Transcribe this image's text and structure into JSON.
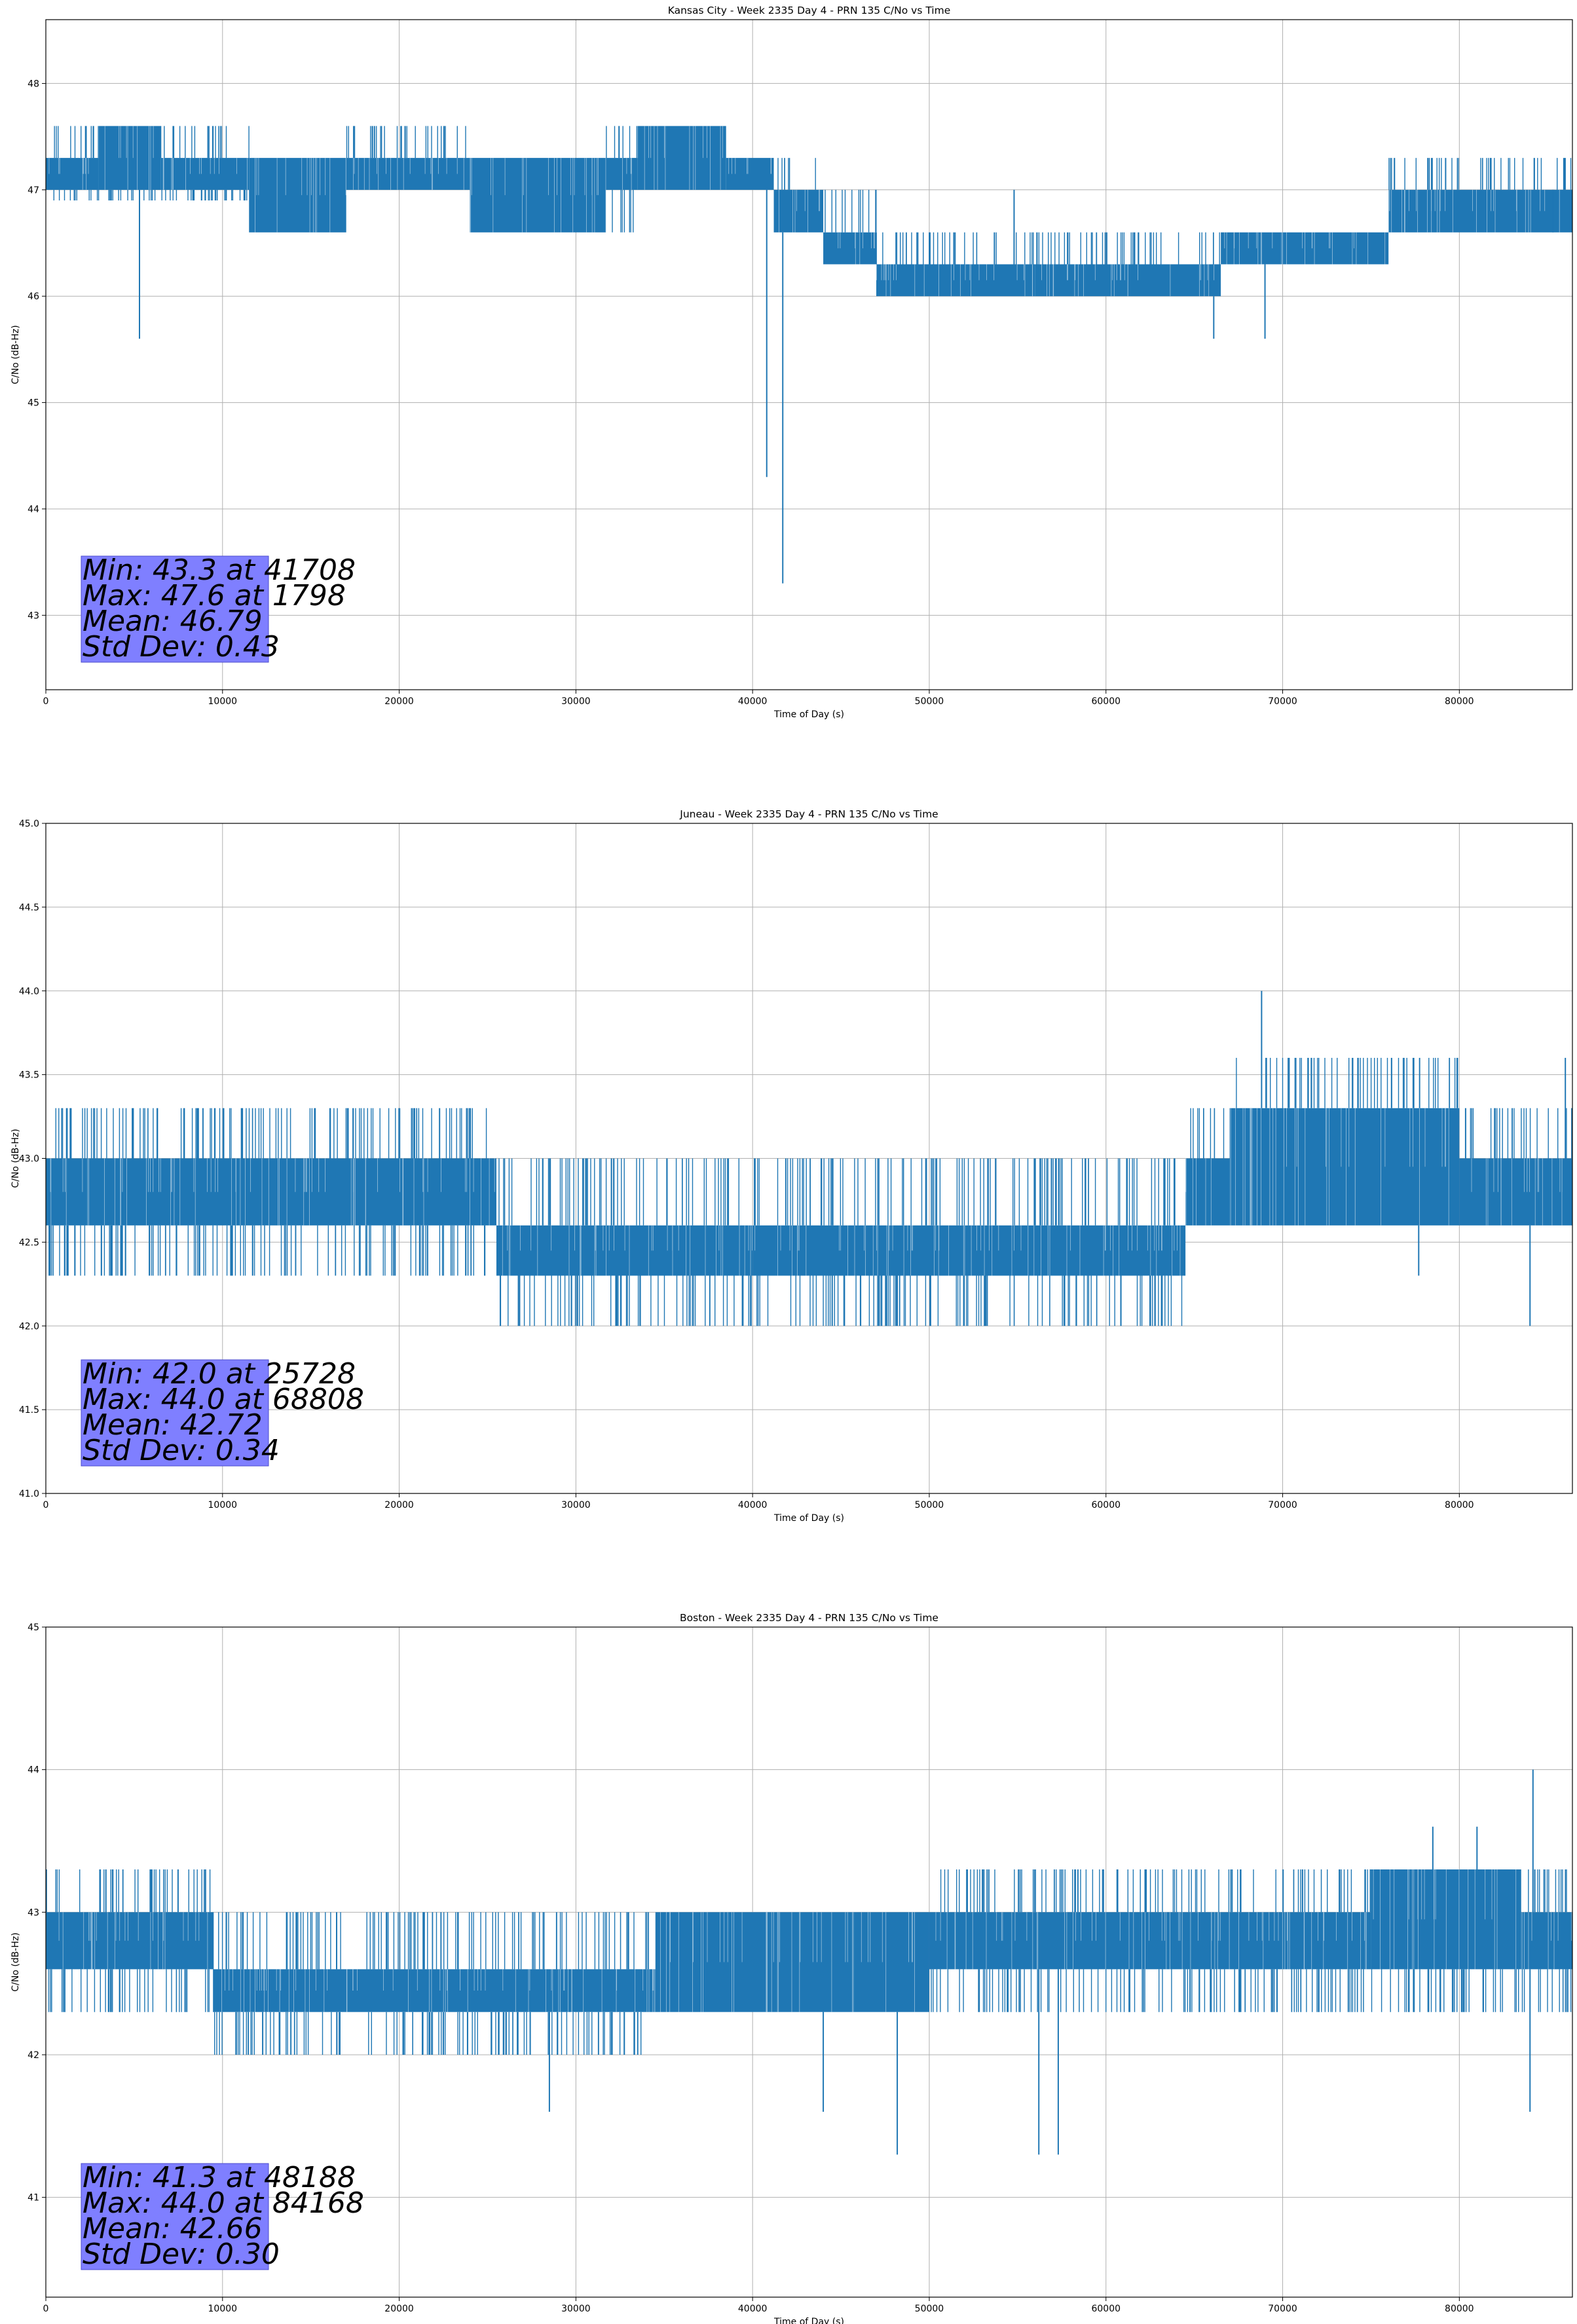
{
  "chart_data": [
    {
      "type": "line",
      "title": "Kansas City - Week 2335 Day 4 - PRN 135 C/No vs Time",
      "xlabel": "Time of Day (s)",
      "ylabel": "C/No (dB-Hz)",
      "xlim": [
        0,
        86400
      ],
      "ylim": [
        42.3,
        48.6
      ],
      "xticks": [
        0,
        10000,
        20000,
        30000,
        40000,
        50000,
        60000,
        70000,
        80000
      ],
      "xtick_labels": [
        "0",
        "10000",
        "20000",
        "30000",
        "40000",
        "50000",
        "60000",
        "70000",
        "80000"
      ],
      "yticks": [
        43,
        44,
        45,
        46,
        47,
        48
      ],
      "ytick_labels": [
        "43",
        "44",
        "45",
        "46",
        "47",
        "48"
      ],
      "grid": true,
      "color": "#1f77b4",
      "series": [
        {
          "bands": [
            {
              "x": [
                0,
                3000
              ],
              "lo": 47.0,
              "hi": 47.3
            },
            {
              "x": [
                3000,
                6500
              ],
              "lo": 47.0,
              "hi": 47.6
            },
            {
              "x": [
                6500,
                11500
              ],
              "lo": 47.0,
              "hi": 47.3
            },
            {
              "x": [
                11500,
                17000
              ],
              "lo": 46.6,
              "hi": 47.3
            },
            {
              "x": [
                17000,
                24000
              ],
              "lo": 47.0,
              "hi": 47.3
            },
            {
              "x": [
                24000,
                31700
              ],
              "lo": 46.6,
              "hi": 47.3
            },
            {
              "x": [
                31700,
                33500
              ],
              "lo": 47.0,
              "hi": 47.3
            },
            {
              "x": [
                33500,
                38500
              ],
              "lo": 47.0,
              "hi": 47.6
            },
            {
              "x": [
                38500,
                41200
              ],
              "lo": 47.0,
              "hi": 47.3
            },
            {
              "x": [
                41200,
                44000
              ],
              "lo": 46.6,
              "hi": 47.0
            },
            {
              "x": [
                44000,
                47000
              ],
              "lo": 46.3,
              "hi": 46.6
            },
            {
              "x": [
                47000,
                56000
              ],
              "lo": 46.0,
              "hi": 46.3
            },
            {
              "x": [
                56000,
                66500
              ],
              "lo": 46.0,
              "hi": 46.3
            },
            {
              "x": [
                66500,
                76000
              ],
              "lo": 46.3,
              "hi": 46.6
            },
            {
              "x": [
                76000,
                86400
              ],
              "lo": 46.6,
              "hi": 47.0
            }
          ],
          "flicker_up": [
            {
              "x": [
                0,
                3000
              ],
              "to": 47.6
            },
            {
              "x": [
                6500,
                11500
              ],
              "to": 47.6
            },
            {
              "x": [
                17000,
                24000
              ],
              "to": 47.6
            },
            {
              "x": [
                31700,
                33500
              ],
              "to": 47.6
            },
            {
              "x": [
                41200,
                44000
              ],
              "to": 47.3
            },
            {
              "x": [
                44000,
                47000
              ],
              "to": 47.0
            },
            {
              "x": [
                47000,
                56000
              ],
              "to": 46.6
            },
            {
              "x": [
                56000,
                66500
              ],
              "to": 46.6
            },
            {
              "x": [
                66500,
                76000
              ],
              "to": 46.6
            },
            {
              "x": [
                76000,
                86400
              ],
              "to": 47.3
            }
          ],
          "flicker_down": [
            {
              "x": [
                0,
                11500
              ],
              "to": 46.9
            },
            {
              "x": [
                31700,
                34000
              ],
              "to": 46.6
            },
            {
              "x": [
                47000,
                66000
              ],
              "to": 46.0
            }
          ],
          "spikes": [
            {
              "x": 5300,
              "y": 45.6
            },
            {
              "x": 40800,
              "y": 44.3
            },
            {
              "x": 41708,
              "y": 43.3
            },
            {
              "x": 18600,
              "y": 47.6
            },
            {
              "x": 54800,
              "y": 47.0
            },
            {
              "x": 66100,
              "y": 45.6
            },
            {
              "x": 69000,
              "y": 45.6
            },
            {
              "x": 85300,
              "y": 46.6
            }
          ]
        }
      ],
      "stats": [
        "Min: 43.3 at 41708",
        "Max: 47.6 at 1798",
        "Mean: 46.79",
        "Std Dev: 0.43"
      ]
    },
    {
      "type": "line",
      "title": "Juneau - Week 2335 Day 4 - PRN 135 C/No vs Time",
      "xlabel": "Time of Day (s)",
      "ylabel": "C/No (dB-Hz)",
      "xlim": [
        0,
        86400
      ],
      "ylim": [
        41.0,
        45.0
      ],
      "xticks": [
        0,
        10000,
        20000,
        30000,
        40000,
        50000,
        60000,
        70000,
        80000
      ],
      "xtick_labels": [
        "0",
        "10000",
        "20000",
        "30000",
        "40000",
        "50000",
        "60000",
        "70000",
        "80000"
      ],
      "yticks": [
        41.0,
        41.5,
        42.0,
        42.5,
        43.0,
        43.5,
        44.0,
        44.5,
        45.0
      ],
      "ytick_labels": [
        "41.0",
        "41.5",
        "42.0",
        "42.5",
        "43.0",
        "43.5",
        "44.0",
        "44.5",
        "45.0"
      ],
      "grid": true,
      "color": "#1f77b4",
      "series": [
        {
          "bands": [
            {
              "x": [
                0,
                25500
              ],
              "lo": 42.6,
              "hi": 43.0
            },
            {
              "x": [
                25500,
                40000
              ],
              "lo": 42.3,
              "hi": 42.6
            },
            {
              "x": [
                40000,
                64500
              ],
              "lo": 42.3,
              "hi": 42.6
            },
            {
              "x": [
                64500,
                67000
              ],
              "lo": 42.6,
              "hi": 43.0
            },
            {
              "x": [
                67000,
                80000
              ],
              "lo": 42.6,
              "hi": 43.3
            },
            {
              "x": [
                80000,
                86400
              ],
              "lo": 42.6,
              "hi": 43.0
            }
          ],
          "flicker_up": [
            {
              "x": [
                0,
                25000
              ],
              "to": 43.3
            },
            {
              "x": [
                25500,
                40000
              ],
              "to": 43.0
            },
            {
              "x": [
                40000,
                64500
              ],
              "to": 43.0
            },
            {
              "x": [
                64500,
                67000
              ],
              "to": 43.3
            },
            {
              "x": [
                67000,
                80000
              ],
              "to": 43.6
            },
            {
              "x": [
                80000,
                86400
              ],
              "to": 43.3
            }
          ],
          "flicker_down": [
            {
              "x": [
                0,
                25000
              ],
              "to": 42.3
            },
            {
              "x": [
                25500,
                40000
              ],
              "to": 42.0
            },
            {
              "x": [
                40000,
                64500
              ],
              "to": 42.0
            },
            {
              "x": [
                69000,
                86400
              ],
              "to": 42.6
            }
          ],
          "spikes": [
            {
              "x": 68808,
              "y": 44.0
            },
            {
              "x": 25728,
              "y": 42.0
            },
            {
              "x": 77700,
              "y": 42.3
            },
            {
              "x": 84000,
              "y": 42.0
            },
            {
              "x": 86000,
              "y": 43.6
            }
          ]
        }
      ],
      "stats": [
        "Min: 42.0 at 25728",
        "Max: 44.0 at 68808",
        "Mean: 42.72",
        "Std Dev: 0.34"
      ]
    },
    {
      "type": "line",
      "title": "Boston - Week 2335 Day 4 - PRN 135 C/No vs Time",
      "xlabel": "Time of Day (s)",
      "ylabel": "C/No (dB-Hz)",
      "xlim": [
        0,
        86400
      ],
      "ylim": [
        40.3,
        45.0
      ],
      "xticks": [
        0,
        10000,
        20000,
        30000,
        40000,
        50000,
        60000,
        70000,
        80000
      ],
      "xtick_labels": [
        "0",
        "10000",
        "20000",
        "30000",
        "40000",
        "50000",
        "60000",
        "70000",
        "80000"
      ],
      "yticks": [
        41,
        42,
        43,
        44,
        45
      ],
      "ytick_labels": [
        "41",
        "42",
        "43",
        "44",
        "45"
      ],
      "grid": true,
      "color": "#1f77b4",
      "series": [
        {
          "bands": [
            {
              "x": [
                0,
                9500
              ],
              "lo": 42.6,
              "hi": 43.0
            },
            {
              "x": [
                9500,
                34500
              ],
              "lo": 42.3,
              "hi": 42.6
            },
            {
              "x": [
                34500,
                50000
              ],
              "lo": 42.3,
              "hi": 43.0
            },
            {
              "x": [
                50000,
                75000
              ],
              "lo": 42.6,
              "hi": 43.0
            },
            {
              "x": [
                75000,
                83500
              ],
              "lo": 42.6,
              "hi": 43.3
            },
            {
              "x": [
                83500,
                86400
              ],
              "lo": 42.6,
              "hi": 43.0
            }
          ],
          "flicker_up": [
            {
              "x": [
                0,
                9500
              ],
              "to": 43.3
            },
            {
              "x": [
                9500,
                34500
              ],
              "to": 43.0
            },
            {
              "x": [
                34500,
                50000
              ],
              "to": 43.0
            },
            {
              "x": [
                50000,
                75000
              ],
              "to": 43.3
            },
            {
              "x": [
                75000,
                86400
              ],
              "to": 43.3
            }
          ],
          "flicker_down": [
            {
              "x": [
                0,
                9500
              ],
              "to": 42.3
            },
            {
              "x": [
                9500,
                34500
              ],
              "to": 42.0
            },
            {
              "x": [
                34500,
                50000
              ],
              "to": 42.3
            },
            {
              "x": [
                50000,
                86400
              ],
              "to": 42.3
            }
          ],
          "spikes": [
            {
              "x": 28500,
              "y": 41.6
            },
            {
              "x": 44000,
              "y": 41.6
            },
            {
              "x": 48188,
              "y": 41.3
            },
            {
              "x": 56200,
              "y": 41.3
            },
            {
              "x": 57300,
              "y": 41.3
            },
            {
              "x": 84000,
              "y": 41.6
            },
            {
              "x": 84168,
              "y": 44.0
            },
            {
              "x": 3400,
              "y": 43.3
            },
            {
              "x": 78500,
              "y": 43.6
            },
            {
              "x": 81000,
              "y": 43.6
            }
          ]
        }
      ],
      "stats": [
        "Min: 41.3 at 48188",
        "Max: 44.0 at 84168",
        "Mean: 42.66",
        "Std Dev: 0.30"
      ]
    }
  ]
}
